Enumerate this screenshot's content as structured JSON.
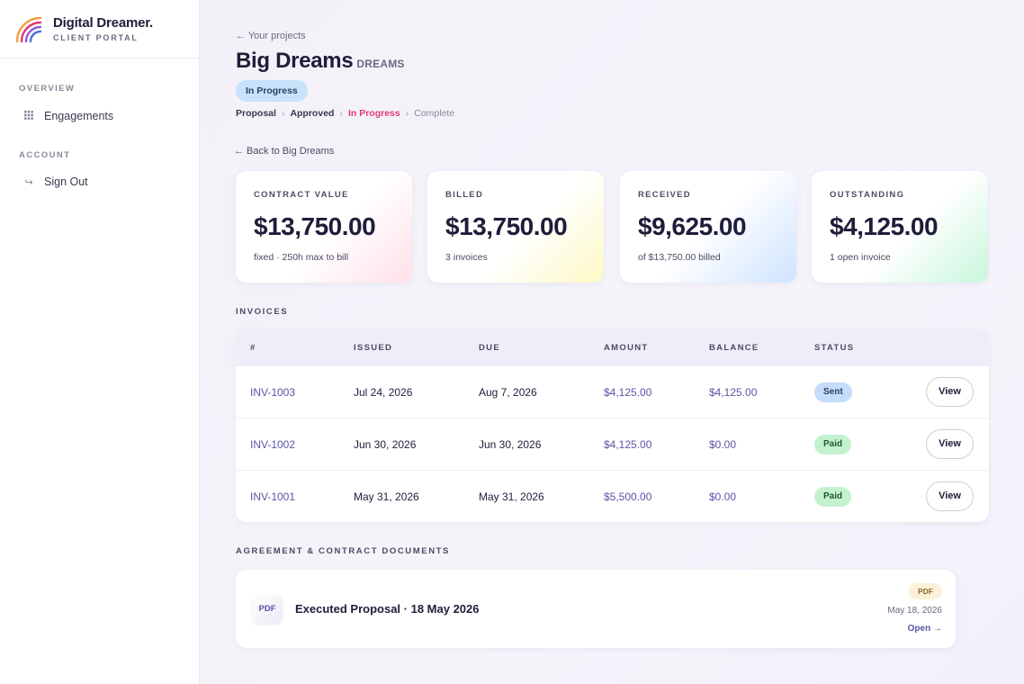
{
  "brand": {
    "name": "Digital Dreamer.",
    "subtitle": "CLIENT PORTAL"
  },
  "sidebar": {
    "sections": [
      {
        "label": "OVERVIEW",
        "items": [
          {
            "label": "Engagements",
            "icon": "grid-icon"
          }
        ]
      },
      {
        "label": "ACCOUNT",
        "items": [
          {
            "label": "Sign Out",
            "icon": "sign-out-icon"
          }
        ]
      }
    ]
  },
  "header": {
    "back_to_projects": "← Your projects",
    "title": "Big Dreams",
    "code": "DREAMS",
    "status": "In Progress",
    "stages": [
      "Proposal",
      "Approved",
      "In Progress",
      "Complete"
    ],
    "current_stage": "In Progress",
    "back_link": "← Back to Big Dreams"
  },
  "stats": [
    {
      "label": "CONTRACT VALUE",
      "value": "$13,750.00",
      "note": "fixed · 250h max to bill"
    },
    {
      "label": "BILLED",
      "value": "$13,750.00",
      "note": "3 invoices"
    },
    {
      "label": "RECEIVED",
      "value": "$9,625.00",
      "note": "of $13,750.00 billed"
    },
    {
      "label": "OUTSTANDING",
      "value": "$4,125.00",
      "note": "1 open invoice"
    }
  ],
  "invoices": {
    "heading": "INVOICES",
    "columns": [
      "#",
      "ISSUED",
      "DUE",
      "AMOUNT",
      "BALANCE",
      "STATUS"
    ],
    "rows": [
      {
        "number": "INV-1003",
        "issued": "Jul 24, 2026",
        "due": "Aug 7, 2026",
        "amount": "$4,125.00",
        "balance": "$4,125.00",
        "status": "Sent",
        "action": "View"
      },
      {
        "number": "INV-1002",
        "issued": "Jun 30, 2026",
        "due": "Jun 30, 2026",
        "amount": "$4,125.00",
        "balance": "$0.00",
        "status": "Paid",
        "action": "View"
      },
      {
        "number": "INV-1001",
        "issued": "May 31, 2026",
        "due": "May 31, 2026",
        "amount": "$5,500.00",
        "balance": "$0.00",
        "status": "Paid",
        "action": "View"
      }
    ]
  },
  "documents": {
    "heading": "AGREEMENT & CONTRACT DOCUMENTS",
    "items": [
      {
        "icon_label": "PDF",
        "title": "Executed Proposal · 18 May 2026",
        "type": "PDF",
        "date": "May 18, 2026",
        "action": "Open →"
      }
    ]
  },
  "colors": {
    "accent": "#5a55a6",
    "active_stage": "#e0397a",
    "sent_badge": "#c5ddfa",
    "paid_badge": "#c4f2cf"
  }
}
